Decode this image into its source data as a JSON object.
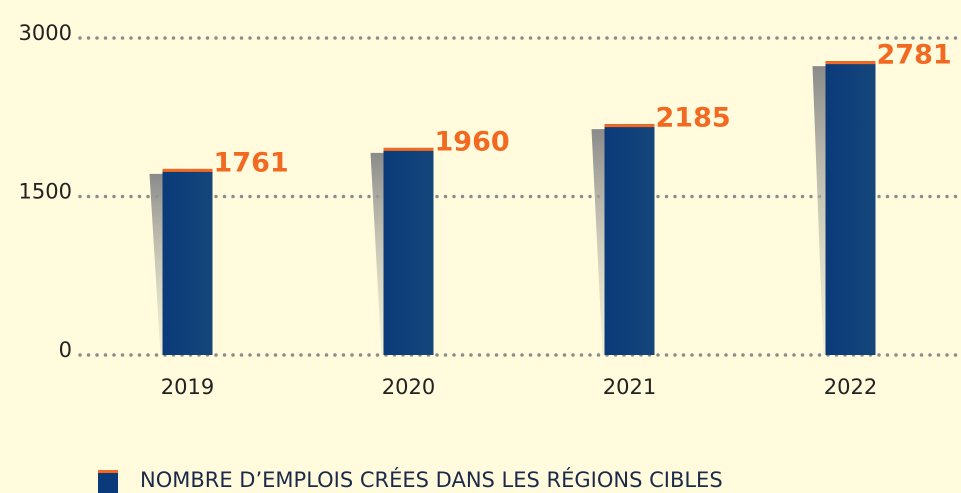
{
  "chart_data": {
    "type": "bar",
    "categories": [
      "2019",
      "2020",
      "2021",
      "2022"
    ],
    "series": [
      {
        "name": "NOMBRE D’EMPLOIS CRÉES DANS LES RÉGIONS CIBLES",
        "color": "#0b3a7a",
        "values": [
          1761,
          1960,
          2185,
          2781
        ]
      }
    ],
    "ylim": [
      0,
      3000
    ],
    "yticks": [
      0,
      1500,
      3000
    ],
    "grid": true,
    "legend": "bottom-left"
  }
}
